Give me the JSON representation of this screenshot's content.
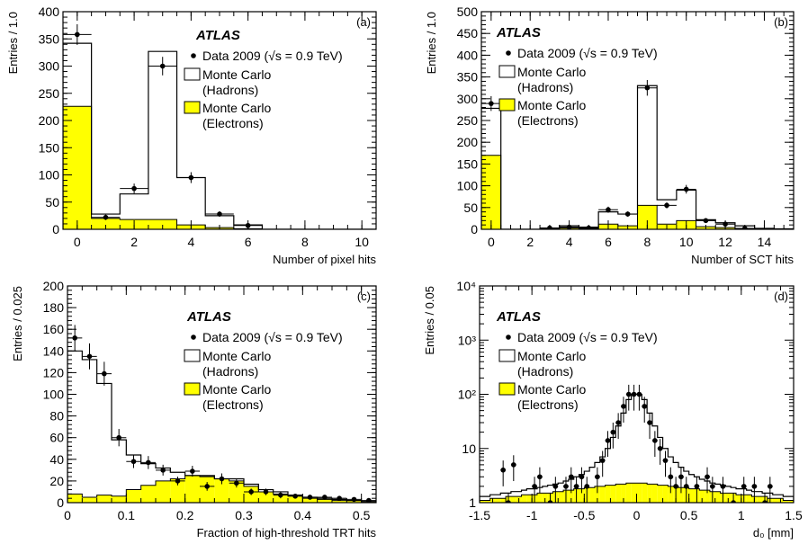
{
  "figure_text": {
    "experiment": "ATLAS",
    "data_label": "Data 2009 (√s = 0.9 TeV)",
    "hadrons_label_1": "Monte Carlo",
    "hadrons_label_2": "(Hadrons)",
    "electrons_label_1": "Monte Carlo",
    "electrons_label_2": "(Electrons)"
  },
  "colors": {
    "electrons_fill": "#ffff00",
    "hadrons_fill": "#ffffff",
    "line": "#000000",
    "data_marker": "#000000"
  },
  "chart_data": [
    {
      "type": "bar",
      "panel": "(a)",
      "xlabel": "Number of pixel hits",
      "ylabel": "Entries / 1.0",
      "xlim": [
        -0.5,
        10.5
      ],
      "ylim": [
        0,
        400
      ],
      "log_y": false,
      "xticks": [
        0,
        2,
        4,
        6,
        8,
        10
      ],
      "yticks": [
        0,
        50,
        100,
        150,
        200,
        250,
        300,
        350,
        400
      ],
      "legend_position": "right",
      "show_legend_text": true,
      "bin_edges": [
        -0.5,
        0.5,
        1.5,
        2.5,
        3.5,
        4.5,
        5.5,
        6.5,
        7.5,
        8.5,
        9.5,
        10.5
      ],
      "series": [
        {
          "name": "Monte Carlo (Hadrons)",
          "kind": "stacked_total",
          "values": [
            342,
            28,
            65,
            327,
            95,
            25,
            8,
            0,
            0,
            0,
            0
          ]
        },
        {
          "name": "Monte Carlo (Electrons)",
          "kind": "filled",
          "values": [
            226,
            20,
            18,
            18,
            8,
            3,
            1,
            0,
            0,
            0,
            0
          ]
        },
        {
          "name": "Data 2009",
          "kind": "points",
          "x": [
            0,
            1,
            2,
            3,
            4,
            5,
            6
          ],
          "y": [
            358,
            22,
            75,
            300,
            95,
            28,
            7
          ],
          "err": [
            19,
            5,
            9,
            17,
            10,
            5,
            3
          ]
        }
      ]
    },
    {
      "type": "bar",
      "panel": "(b)",
      "xlabel": "Number of SCT hits",
      "ylabel": "Entries / 1.0",
      "xlim": [
        -0.5,
        15.5
      ],
      "ylim": [
        0,
        500
      ],
      "log_y": false,
      "xticks": [
        0,
        2,
        4,
        6,
        8,
        10,
        12,
        14
      ],
      "yticks": [
        0,
        50,
        100,
        150,
        200,
        250,
        300,
        350,
        400,
        450,
        500
      ],
      "legend_position": "top-left",
      "show_legend_text": true,
      "bin_edges": [
        -0.5,
        0.5,
        1.5,
        2.5,
        3.5,
        4.5,
        5.5,
        6.5,
        7.5,
        8.5,
        9.5,
        10.5,
        11.5,
        12.5,
        13.5,
        14.5,
        15.5
      ],
      "series": [
        {
          "name": "Monte Carlo (Hadrons)",
          "kind": "stacked_total",
          "values": [
            278,
            0,
            0,
            2,
            8,
            5,
            40,
            35,
            330,
            68,
            90,
            22,
            15,
            8,
            2,
            1
          ]
        },
        {
          "name": "Monte Carlo (Electrons)",
          "kind": "filled",
          "values": [
            170,
            0,
            0,
            1,
            3,
            2,
            12,
            8,
            55,
            12,
            20,
            6,
            4,
            2,
            1,
            0
          ]
        },
        {
          "name": "Data 2009",
          "kind": "points",
          "x": [
            0,
            3,
            4,
            5,
            6,
            7,
            8,
            9,
            10,
            11,
            12,
            13
          ],
          "y": [
            289,
            3,
            5,
            3,
            45,
            35,
            325,
            55,
            92,
            20,
            12,
            2
          ],
          "err": [
            17,
            2,
            2,
            2,
            7,
            6,
            18,
            7,
            10,
            4,
            3,
            1
          ]
        }
      ]
    },
    {
      "type": "bar",
      "panel": "(c)",
      "xlabel": "Fraction of high-threshold TRT hits",
      "ylabel": "Entries / 0.025",
      "xlim": [
        0,
        0.525
      ],
      "ylim": [
        0,
        200
      ],
      "log_y": false,
      "xticks": [
        0,
        0.1,
        0.2,
        0.3,
        0.4,
        0.5
      ],
      "xticklabels": [
        "0",
        "0.1",
        "0.2",
        "0.3",
        "0.4",
        "0.5"
      ],
      "yticks": [
        0,
        20,
        40,
        60,
        80,
        100,
        120,
        140,
        160,
        180,
        200
      ],
      "legend_position": "top-right",
      "show_legend_text": true,
      "bin_edges": [
        0,
        0.025,
        0.05,
        0.075,
        0.1,
        0.125,
        0.15,
        0.175,
        0.2,
        0.225,
        0.25,
        0.275,
        0.3,
        0.325,
        0.35,
        0.375,
        0.4,
        0.425,
        0.45,
        0.475,
        0.5,
        0.525
      ],
      "series": [
        {
          "name": "Monte Carlo (Hadrons)",
          "kind": "stacked_total",
          "values": [
            140,
            132,
            110,
            58,
            44,
            36,
            32,
            28,
            25,
            25,
            22,
            22,
            17,
            12,
            10,
            7,
            5,
            4,
            3,
            2,
            1
          ]
        },
        {
          "name": "Monte Carlo (Electrons)",
          "kind": "filled",
          "values": [
            8,
            5,
            7,
            6,
            12,
            16,
            20,
            22,
            25,
            24,
            22,
            20,
            15,
            10,
            8,
            6,
            4,
            3,
            2,
            2,
            1
          ]
        },
        {
          "name": "Data 2009",
          "kind": "points",
          "x": [
            0.0125,
            0.0375,
            0.0625,
            0.0875,
            0.1125,
            0.1375,
            0.1625,
            0.1875,
            0.2125,
            0.2375,
            0.2625,
            0.2875,
            0.3125,
            0.3375,
            0.3625,
            0.3875,
            0.4125,
            0.4375,
            0.4625,
            0.4875,
            0.5125
          ],
          "y": [
            152,
            135,
            119,
            60,
            38,
            37,
            30,
            20,
            29,
            15,
            22,
            18,
            10,
            10,
            7,
            6,
            5,
            5,
            4,
            3,
            2
          ],
          "err": [
            12,
            12,
            11,
            8,
            6,
            6,
            5,
            4,
            5,
            4,
            5,
            4,
            3,
            3,
            3,
            2,
            2,
            2,
            2,
            2,
            1
          ]
        }
      ]
    },
    {
      "type": "bar",
      "panel": "(d)",
      "xlabel": "d₀ [mm]",
      "ylabel": "Entries / 0.05",
      "xlim": [
        -1.5,
        1.5
      ],
      "ylim": [
        1,
        10000
      ],
      "log_y": true,
      "xticks": [
        -1.5,
        -1,
        -0.5,
        0,
        0.5,
        1,
        1.5
      ],
      "xticklabels": [
        "-1.5",
        "-1",
        "-0.5",
        "0",
        "0.5",
        "1",
        "1.5"
      ],
      "yticks": [
        1,
        10,
        100,
        1000,
        10000
      ],
      "yticklabels": [
        "1",
        "10",
        "10²",
        "10³",
        "10⁴"
      ],
      "legend_position": "top-left",
      "show_legend_text": true,
      "bin_edges": [
        -1.5,
        -1.45,
        -1.4,
        -1.35,
        -1.3,
        -1.25,
        -1.2,
        -1.15,
        -1.1,
        -1.05,
        -1.0,
        -0.95,
        -0.9,
        -0.85,
        -0.8,
        -0.75,
        -0.7,
        -0.65,
        -0.6,
        -0.55,
        -0.5,
        -0.45,
        -0.4,
        -0.35,
        -0.3,
        -0.25,
        -0.2,
        -0.15,
        -0.1,
        -0.05,
        0.0,
        0.05,
        0.1,
        0.15,
        0.2,
        0.25,
        0.3,
        0.35,
        0.4,
        0.45,
        0.5,
        0.55,
        0.6,
        0.65,
        0.7,
        0.75,
        0.8,
        0.85,
        0.9,
        0.95,
        1.0,
        1.05,
        1.1,
        1.15,
        1.2,
        1.25,
        1.3,
        1.35,
        1.4,
        1.45,
        1.5
      ],
      "series": [
        {
          "name": "Monte Carlo (Hadrons)",
          "kind": "stacked_total",
          "values": [
            1.3,
            1.3,
            1.4,
            1.4,
            1.5,
            1.5,
            1.6,
            1.6,
            1.7,
            1.8,
            1.8,
            1.9,
            2.0,
            2.1,
            2.2,
            2.3,
            2.5,
            2.7,
            3.0,
            3.3,
            3.8,
            4.5,
            5.5,
            7,
            10,
            16,
            26,
            45,
            80,
            100,
            100,
            80,
            45,
            26,
            16,
            10,
            7,
            5.5,
            4.5,
            3.8,
            3.3,
            3.0,
            2.7,
            2.5,
            2.3,
            2.2,
            2.1,
            2.0,
            1.9,
            1.8,
            1.8,
            1.7,
            1.6,
            1.6,
            1.5,
            1.5,
            1.4,
            1.4,
            1.3,
            1.3
          ]
        },
        {
          "name": "Monte Carlo (Electrons)",
          "kind": "filled",
          "values": [
            1.1,
            1.1,
            1.2,
            1.2,
            1.2,
            1.3,
            1.3,
            1.3,
            1.4,
            1.4,
            1.4,
            1.5,
            1.5,
            1.5,
            1.6,
            1.6,
            1.7,
            1.7,
            1.8,
            1.8,
            1.9,
            1.9,
            2.0,
            2.0,
            2.1,
            2.1,
            2.2,
            2.2,
            2.3,
            2.3,
            2.3,
            2.3,
            2.2,
            2.2,
            2.1,
            2.1,
            2.0,
            2.0,
            1.9,
            1.9,
            1.8,
            1.8,
            1.7,
            1.7,
            1.6,
            1.6,
            1.5,
            1.5,
            1.5,
            1.4,
            1.4,
            1.4,
            1.3,
            1.3,
            1.3,
            1.2,
            1.2,
            1.2,
            1.1,
            1.1
          ]
        },
        {
          "name": "Data 2009",
          "kind": "points",
          "x": [
            -1.275,
            -1.225,
            -1.175,
            -0.975,
            -0.925,
            -0.825,
            -0.775,
            -0.675,
            -0.625,
            -0.575,
            -0.525,
            -0.475,
            -0.375,
            -0.325,
            -0.275,
            -0.225,
            -0.175,
            -0.125,
            -0.075,
            -0.025,
            0.025,
            0.075,
            0.125,
            0.175,
            0.225,
            0.275,
            0.325,
            0.375,
            0.425,
            0.475,
            0.575,
            0.675,
            0.725,
            0.825,
            0.925,
            1.025,
            1.125,
            1.225,
            1.275
          ],
          "y": [
            4,
            1,
            5,
            2,
            3,
            1,
            2,
            2,
            3,
            2,
            3,
            2,
            3,
            6,
            14,
            20,
            30,
            60,
            100,
            100,
            100,
            60,
            30,
            14,
            10,
            6,
            3,
            2,
            3,
            2,
            2,
            3,
            2,
            2,
            1,
            2,
            2,
            1,
            2
          ],
          "errfrac": 0.5
        }
      ]
    }
  ]
}
